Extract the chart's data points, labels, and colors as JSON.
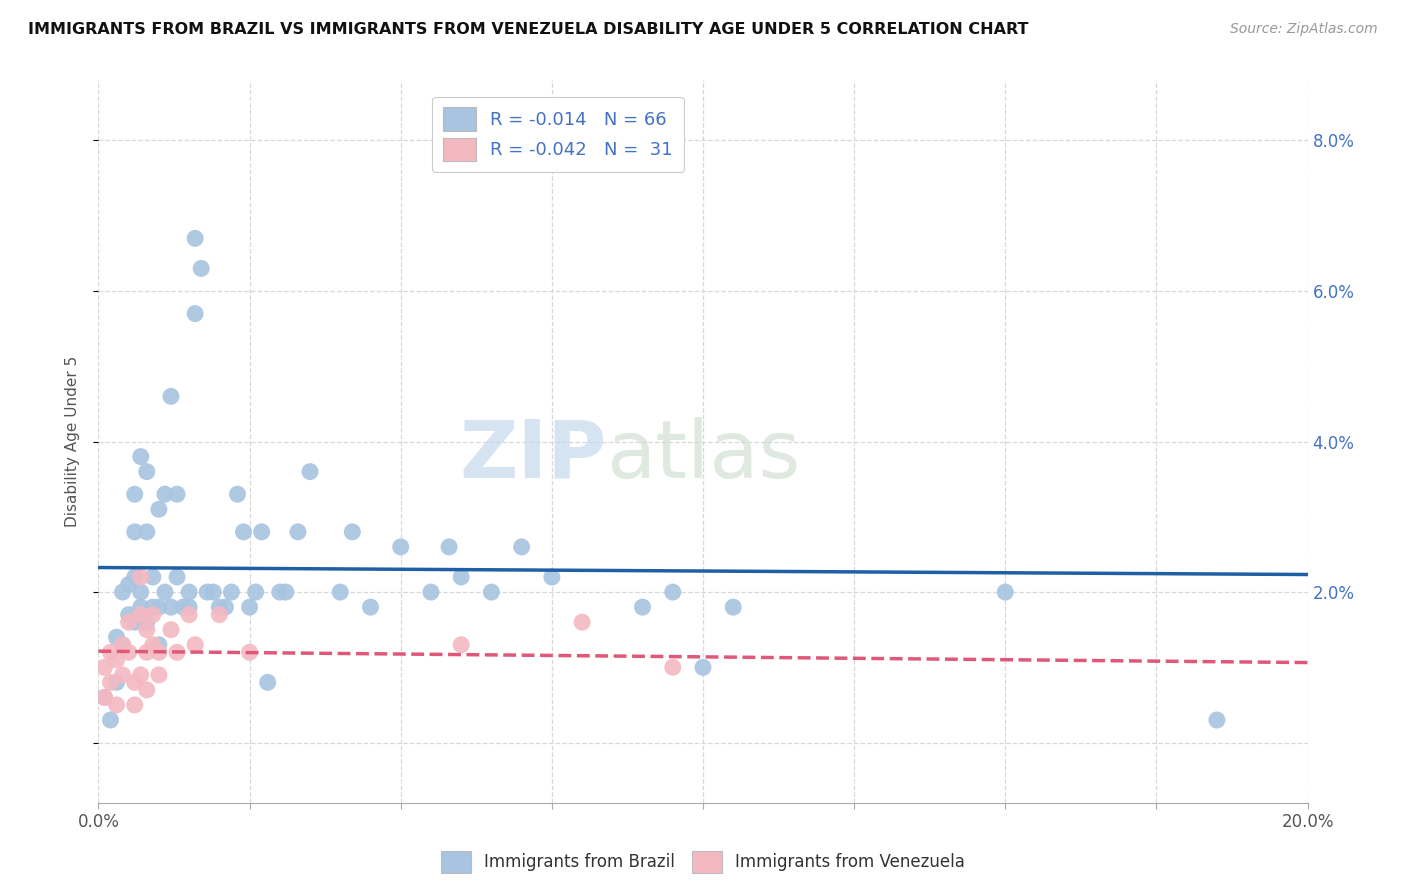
{
  "title": "IMMIGRANTS FROM BRAZIL VS IMMIGRANTS FROM VENEZUELA DISABILITY AGE UNDER 5 CORRELATION CHART",
  "source": "Source: ZipAtlas.com",
  "ylabel": "Disability Age Under 5",
  "xlim": [
    0.0,
    0.2
  ],
  "ylim": [
    -0.008,
    0.088
  ],
  "xticks": [
    0.0,
    0.025,
    0.05,
    0.075,
    0.1,
    0.125,
    0.15,
    0.175,
    0.2
  ],
  "xtick_labels_full": [
    "0.0%",
    "",
    "",
    "",
    "",
    "",
    "",
    "",
    "20.0%"
  ],
  "yticks": [
    0.0,
    0.02,
    0.04,
    0.06,
    0.08
  ],
  "ytick_labels_right": [
    "",
    "2.0%",
    "4.0%",
    "6.0%",
    "8.0%"
  ],
  "brazil_color": "#a8c4e0",
  "venezuela_color": "#f4b8c1",
  "brazil_line_color": "#1f5fa6",
  "venezuela_line_color": "#e05878",
  "brazil_R": -0.014,
  "brazil_N": 66,
  "venezuela_R": -0.042,
  "venezuela_N": 31,
  "legend_label_brazil": "R = -0.014   N = 66",
  "legend_label_venezuela": "R = -0.042   N =  31",
  "watermark_zip": "ZIP",
  "watermark_atlas": "atlas",
  "background_color": "#ffffff",
  "grid_color": "#d8d8d8",
  "brazil_points": [
    [
      0.001,
      0.006
    ],
    [
      0.002,
      0.003
    ],
    [
      0.003,
      0.008
    ],
    [
      0.003,
      0.014
    ],
    [
      0.004,
      0.013
    ],
    [
      0.004,
      0.02
    ],
    [
      0.005,
      0.021
    ],
    [
      0.005,
      0.017
    ],
    [
      0.006,
      0.033
    ],
    [
      0.006,
      0.028
    ],
    [
      0.006,
      0.022
    ],
    [
      0.006,
      0.016
    ],
    [
      0.007,
      0.038
    ],
    [
      0.007,
      0.018
    ],
    [
      0.007,
      0.02
    ],
    [
      0.008,
      0.036
    ],
    [
      0.008,
      0.028
    ],
    [
      0.008,
      0.016
    ],
    [
      0.009,
      0.018
    ],
    [
      0.009,
      0.022
    ],
    [
      0.01,
      0.031
    ],
    [
      0.01,
      0.018
    ],
    [
      0.01,
      0.013
    ],
    [
      0.011,
      0.033
    ],
    [
      0.011,
      0.02
    ],
    [
      0.012,
      0.046
    ],
    [
      0.012,
      0.018
    ],
    [
      0.013,
      0.033
    ],
    [
      0.013,
      0.022
    ],
    [
      0.014,
      0.018
    ],
    [
      0.015,
      0.02
    ],
    [
      0.015,
      0.018
    ],
    [
      0.016,
      0.067
    ],
    [
      0.016,
      0.057
    ],
    [
      0.017,
      0.063
    ],
    [
      0.018,
      0.02
    ],
    [
      0.019,
      0.02
    ],
    [
      0.02,
      0.018
    ],
    [
      0.021,
      0.018
    ],
    [
      0.022,
      0.02
    ],
    [
      0.023,
      0.033
    ],
    [
      0.024,
      0.028
    ],
    [
      0.025,
      0.018
    ],
    [
      0.026,
      0.02
    ],
    [
      0.027,
      0.028
    ],
    [
      0.028,
      0.008
    ],
    [
      0.03,
      0.02
    ],
    [
      0.031,
      0.02
    ],
    [
      0.033,
      0.028
    ],
    [
      0.035,
      0.036
    ],
    [
      0.04,
      0.02
    ],
    [
      0.042,
      0.028
    ],
    [
      0.045,
      0.018
    ],
    [
      0.05,
      0.026
    ],
    [
      0.055,
      0.02
    ],
    [
      0.058,
      0.026
    ],
    [
      0.06,
      0.022
    ],
    [
      0.065,
      0.02
    ],
    [
      0.09,
      0.018
    ],
    [
      0.095,
      0.02
    ],
    [
      0.1,
      0.01
    ],
    [
      0.105,
      0.018
    ],
    [
      0.15,
      0.02
    ],
    [
      0.185,
      0.003
    ],
    [
      0.075,
      0.022
    ],
    [
      0.07,
      0.026
    ]
  ],
  "venezuela_points": [
    [
      0.001,
      0.01
    ],
    [
      0.001,
      0.006
    ],
    [
      0.002,
      0.008
    ],
    [
      0.002,
      0.012
    ],
    [
      0.003,
      0.011
    ],
    [
      0.003,
      0.005
    ],
    [
      0.004,
      0.013
    ],
    [
      0.004,
      0.009
    ],
    [
      0.005,
      0.016
    ],
    [
      0.005,
      0.012
    ],
    [
      0.006,
      0.008
    ],
    [
      0.006,
      0.005
    ],
    [
      0.007,
      0.022
    ],
    [
      0.007,
      0.017
    ],
    [
      0.007,
      0.009
    ],
    [
      0.008,
      0.015
    ],
    [
      0.008,
      0.012
    ],
    [
      0.008,
      0.007
    ],
    [
      0.009,
      0.017
    ],
    [
      0.009,
      0.013
    ],
    [
      0.01,
      0.012
    ],
    [
      0.01,
      0.009
    ],
    [
      0.012,
      0.015
    ],
    [
      0.013,
      0.012
    ],
    [
      0.015,
      0.017
    ],
    [
      0.016,
      0.013
    ],
    [
      0.02,
      0.017
    ],
    [
      0.025,
      0.012
    ],
    [
      0.06,
      0.013
    ],
    [
      0.08,
      0.016
    ],
    [
      0.095,
      0.01
    ]
  ]
}
